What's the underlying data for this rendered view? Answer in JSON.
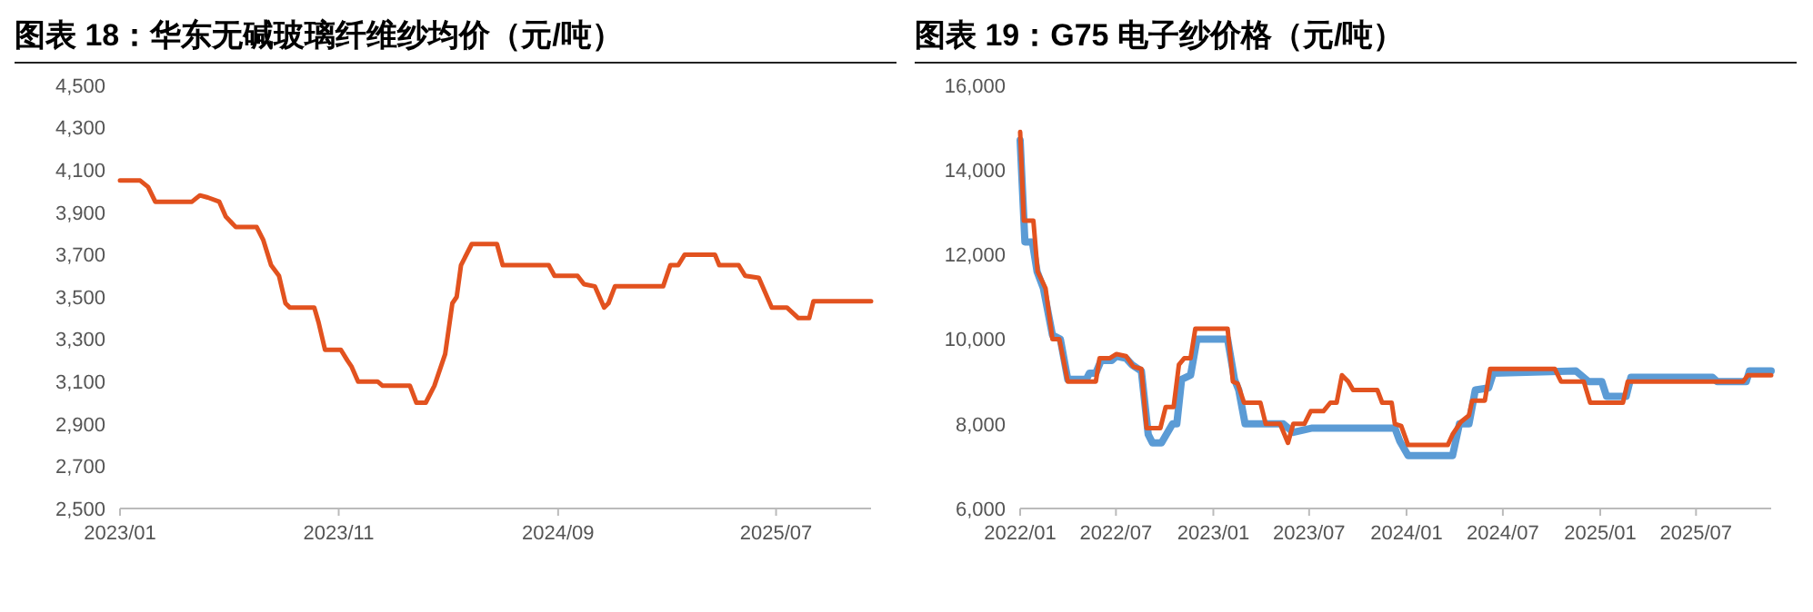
{
  "chart_data": [
    {
      "type": "line",
      "title": "图表 18：华东无碱玻璃纤维纱均价（元/吨）",
      "x": [
        "2023-01-01",
        "2023-01-29",
        "2023-02-09",
        "2023-02-19",
        "2023-04-11",
        "2023-04-22",
        "2023-05-03",
        "2023-05-19",
        "2023-05-28",
        "2023-06-11",
        "2023-07-10",
        "2023-07-19",
        "2023-07-30",
        "2023-08-10",
        "2023-08-19",
        "2023-08-25",
        "2023-09-28",
        "2023-10-04",
        "2023-10-13",
        "2023-11-04",
        "2023-11-13",
        "2023-11-19",
        "2023-11-28",
        "2023-12-25",
        "2024-01-01",
        "2024-02-08",
        "2024-02-17",
        "2024-03-01",
        "2024-03-13",
        "2024-03-28",
        "2024-04-07",
        "2024-04-13",
        "2024-04-19",
        "2024-05-04",
        "2024-06-08",
        "2024-06-16",
        "2024-08-19",
        "2024-08-27",
        "2024-09-28",
        "2024-10-07",
        "2024-10-22",
        "2024-11-04",
        "2024-11-10",
        "2024-11-19",
        "2025-01-25",
        "2025-02-04",
        "2025-02-15",
        "2025-02-24",
        "2025-04-07",
        "2025-04-13",
        "2025-05-10",
        "2025-05-19",
        "2025-06-07",
        "2025-06-25",
        "2025-07-16",
        "2025-08-01",
        "2025-08-16",
        "2025-08-22",
        "2025-11-10"
      ],
      "series": [
        {
          "color": "#e2521f",
          "values": [
            4050,
            4050,
            4020,
            3950,
            3950,
            3980,
            3970,
            3950,
            3880,
            3830,
            3830,
            3770,
            3650,
            3600,
            3470,
            3450,
            3450,
            3380,
            3250,
            3250,
            3200,
            3170,
            3100,
            3100,
            3080,
            3080,
            3000,
            3000,
            3080,
            3230,
            3470,
            3500,
            3650,
            3750,
            3750,
            3650,
            3650,
            3600,
            3600,
            3560,
            3550,
            3450,
            3470,
            3550,
            3550,
            3650,
            3650,
            3700,
            3700,
            3650,
            3650,
            3600,
            3590,
            3450,
            3450,
            3400,
            3400,
            3480,
            3480
          ]
        }
      ],
      "xlim": [
        "2023-01-01",
        "2025-11-10"
      ],
      "xticks": [
        {
          "value": "2023-01-01",
          "label": "2023/01"
        },
        {
          "value": "2023-11-01",
          "label": "2023/11"
        },
        {
          "value": "2024-09-01",
          "label": "2024/09"
        },
        {
          "value": "2025-07-01",
          "label": "2025/07"
        }
      ],
      "ylim": [
        2500,
        4500
      ],
      "yticks": [
        {
          "value": 2500,
          "label": "2,500"
        },
        {
          "value": 2700,
          "label": "2,700"
        },
        {
          "value": 2900,
          "label": "2,900"
        },
        {
          "value": 3100,
          "label": "3,100"
        },
        {
          "value": 3300,
          "label": "3,300"
        },
        {
          "value": 3500,
          "label": "3,500"
        },
        {
          "value": 3700,
          "label": "3,700"
        },
        {
          "value": 3900,
          "label": "3,900"
        },
        {
          "value": 4100,
          "label": "4,100"
        },
        {
          "value": 4300,
          "label": "4,300"
        },
        {
          "value": 4500,
          "label": "4,500"
        }
      ],
      "grid": false
    },
    {
      "type": "line",
      "title": "图表 19：G75 电子纱价格（元/吨）",
      "series": [
        {
          "color": "#5b9bd5",
          "x": [
            "2022-01-01",
            "2022-01-10",
            "2022-01-24",
            "2022-02-02",
            "2022-02-14",
            "2022-03-03",
            "2022-03-18",
            "2022-04-01",
            "2022-05-06",
            "2022-05-12",
            "2022-05-24",
            "2022-06-03",
            "2022-06-23",
            "2022-07-02",
            "2022-07-20",
            "2022-07-31",
            "2022-08-18",
            "2022-08-31",
            "2022-09-08",
            "2022-09-25",
            "2022-10-16",
            "2022-10-24",
            "2022-11-02",
            "2022-11-19",
            "2022-12-01",
            "2023-01-28",
            "2023-02-10",
            "2023-02-18",
            "2023-03-02",
            "2023-05-13",
            "2023-06-01",
            "2023-07-07",
            "2023-12-10",
            "2023-12-19",
            "2024-01-04",
            "2024-03-28",
            "2024-04-10",
            "2024-04-28",
            "2024-05-10",
            "2024-06-04",
            "2024-06-13",
            "2024-11-16",
            "2024-12-10",
            "2025-01-04",
            "2025-01-13",
            "2025-02-19",
            "2025-02-28",
            "2025-08-01",
            "2025-08-10",
            "2025-10-04",
            "2025-10-10",
            "2025-11-20"
          ],
          "values": [
            14700,
            12300,
            12300,
            11600,
            11200,
            10100,
            10000,
            9050,
            9050,
            9200,
            9200,
            9500,
            9500,
            9600,
            9550,
            9400,
            9250,
            7750,
            7550,
            7550,
            8000,
            8000,
            9050,
            9150,
            10000,
            10000,
            9050,
            8800,
            8000,
            8000,
            7800,
            7900,
            7900,
            7600,
            7250,
            7250,
            8000,
            8000,
            8800,
            8850,
            9200,
            9250,
            9000,
            9000,
            8650,
            8650,
            9100,
            9100,
            9000,
            9000,
            9250,
            9250
          ]
        },
        {
          "color": "#e2521f",
          "x": [
            "2022-01-01",
            "2022-01-08",
            "2022-01-26",
            "2022-02-03",
            "2022-02-18",
            "2022-03-03",
            "2022-03-16",
            "2022-04-01",
            "2022-05-24",
            "2022-05-31",
            "2022-06-19",
            "2022-07-02",
            "2022-07-20",
            "2022-08-03",
            "2022-08-18",
            "2022-08-28",
            "2022-09-23",
            "2022-10-03",
            "2022-10-18",
            "2022-10-28",
            "2022-11-07",
            "2022-11-19",
            "2022-11-28",
            "2023-01-28",
            "2023-02-07",
            "2023-02-16",
            "2023-02-28",
            "2023-03-31",
            "2023-04-10",
            "2023-05-07",
            "2023-05-22",
            "2023-06-01",
            "2023-06-22",
            "2023-07-04",
            "2023-07-28",
            "2023-08-10",
            "2023-08-22",
            "2023-09-01",
            "2023-09-13",
            "2023-09-22",
            "2023-11-07",
            "2023-11-16",
            "2023-12-04",
            "2023-12-10",
            "2023-12-22",
            "2024-01-04",
            "2024-03-19",
            "2024-03-28",
            "2024-04-13",
            "2024-04-28",
            "2024-05-04",
            "2024-05-28",
            "2024-06-07",
            "2024-10-07",
            "2024-10-19",
            "2024-12-01",
            "2024-12-13",
            "2025-02-13",
            "2025-02-22",
            "2025-09-28",
            "2025-10-07",
            "2025-11-20"
          ],
          "values": [
            14900,
            12800,
            12800,
            11600,
            11200,
            10000,
            10000,
            9000,
            9000,
            9550,
            9550,
            9650,
            9600,
            9350,
            9300,
            7900,
            7900,
            8400,
            8400,
            9400,
            9550,
            9550,
            10250,
            10250,
            9000,
            8950,
            8500,
            8500,
            8000,
            8000,
            7550,
            8000,
            8000,
            8300,
            8300,
            8500,
            8500,
            9150,
            9000,
            8800,
            8800,
            8500,
            8500,
            8000,
            7950,
            7500,
            7500,
            7750,
            8050,
            8200,
            8550,
            8550,
            9300,
            9300,
            9000,
            9000,
            8500,
            8500,
            9000,
            9000,
            9150,
            9150
          ]
        }
      ],
      "xlim": [
        "2022-01-01",
        "2025-11-20"
      ],
      "xticks": [
        {
          "value": "2022-01-01",
          "label": "2022/01"
        },
        {
          "value": "2022-07-01",
          "label": "2022/07"
        },
        {
          "value": "2023-01-01",
          "label": "2023/01"
        },
        {
          "value": "2023-07-01",
          "label": "2023/07"
        },
        {
          "value": "2024-01-01",
          "label": "2024/01"
        },
        {
          "value": "2024-07-01",
          "label": "2024/07"
        },
        {
          "value": "2025-01-01",
          "label": "2025/01"
        },
        {
          "value": "2025-07-01",
          "label": "2025/07"
        }
      ],
      "ylim": [
        6000,
        16000
      ],
      "yticks": [
        {
          "value": 6000,
          "label": "6,000"
        },
        {
          "value": 8000,
          "label": "8,000"
        },
        {
          "value": 10000,
          "label": "10,000"
        },
        {
          "value": 12000,
          "label": "12,000"
        },
        {
          "value": 14000,
          "label": "14,000"
        },
        {
          "value": 16000,
          "label": "16,000"
        }
      ],
      "grid": false
    }
  ]
}
